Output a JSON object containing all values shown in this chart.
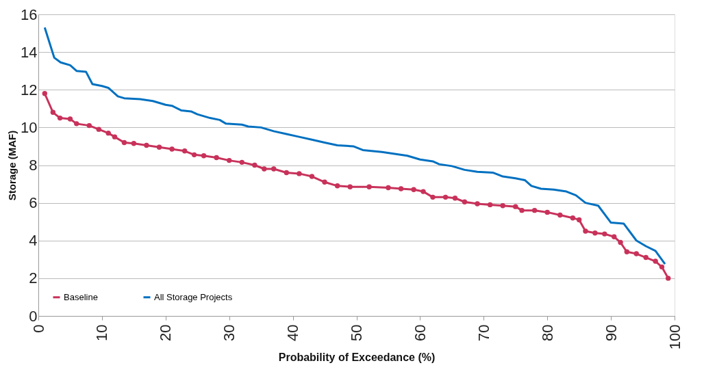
{
  "chart_data": {
    "type": "line",
    "xlabel": "Probability of Exceedance (%)",
    "ylabel": "Storage (MAF)",
    "xlim": [
      0,
      100
    ],
    "xticks": [
      0,
      10,
      20,
      30,
      40,
      50,
      60,
      70,
      80,
      90,
      100
    ],
    "ylim": [
      0,
      16
    ],
    "yticks": [
      0,
      2,
      4,
      6,
      8,
      10,
      12,
      14,
      16
    ],
    "grid": "y",
    "legend": "bottom left",
    "series": [
      {
        "name": "Baseline",
        "color": "#c8325a",
        "marker": "circle",
        "x": [
          1,
          2.3,
          3.4,
          5,
          6,
          8,
          9.5,
          11,
          12,
          13.5,
          15,
          17,
          19,
          21,
          23,
          24.5,
          26,
          28,
          30,
          32,
          34,
          35.5,
          37,
          39,
          41,
          43,
          45,
          47,
          49,
          52,
          55,
          57,
          59,
          60.5,
          62,
          64,
          65.5,
          67,
          69,
          71,
          73,
          75,
          76,
          78,
          80,
          82,
          84,
          85,
          86,
          87.5,
          89,
          90.5,
          91.5,
          92.5,
          94,
          95.5,
          97,
          98,
          99
        ],
        "values": [
          11.8,
          10.8,
          10.5,
          10.45,
          10.2,
          10.1,
          9.9,
          9.7,
          9.5,
          9.2,
          9.15,
          9.05,
          8.95,
          8.85,
          8.75,
          8.55,
          8.5,
          8.4,
          8.25,
          8.15,
          8.0,
          7.8,
          7.8,
          7.6,
          7.55,
          7.4,
          7.1,
          6.9,
          6.85,
          6.85,
          6.8,
          6.75,
          6.7,
          6.6,
          6.3,
          6.3,
          6.25,
          6.05,
          5.95,
          5.9,
          5.85,
          5.8,
          5.6,
          5.6,
          5.5,
          5.35,
          5.2,
          5.1,
          4.5,
          4.4,
          4.35,
          4.2,
          3.9,
          3.4,
          3.3,
          3.1,
          2.9,
          2.6,
          2.0
        ]
      },
      {
        "name": "All Storage Projects",
        "color": "#0070c0",
        "marker": "none",
        "x": [
          1,
          2.5,
          3.5,
          5,
          6,
          7.5,
          8.5,
          10,
          11,
          12.5,
          13.5,
          16,
          18,
          20,
          21,
          22.5,
          24,
          25,
          27,
          28.5,
          29.5,
          32,
          33,
          35,
          37,
          39,
          41,
          43,
          45,
          47,
          49.5,
          51,
          54,
          56,
          58,
          60,
          62,
          63,
          65,
          67,
          69,
          71.5,
          73,
          75,
          76.5,
          77.5,
          79,
          81,
          83,
          84.5,
          86,
          88,
          90,
          92,
          94,
          95.5,
          97,
          98.5
        ],
        "values": [
          15.3,
          13.7,
          13.45,
          13.3,
          13.0,
          12.95,
          12.3,
          12.2,
          12.1,
          11.65,
          11.55,
          11.5,
          11.4,
          11.2,
          11.15,
          10.9,
          10.85,
          10.7,
          10.5,
          10.4,
          10.2,
          10.15,
          10.05,
          10.0,
          9.8,
          9.65,
          9.5,
          9.35,
          9.2,
          9.05,
          9.0,
          8.8,
          8.7,
          8.6,
          8.5,
          8.3,
          8.2,
          8.05,
          7.95,
          7.75,
          7.65,
          7.6,
          7.4,
          7.3,
          7.2,
          6.9,
          6.75,
          6.7,
          6.6,
          6.4,
          6.0,
          5.85,
          4.95,
          4.9,
          4.0,
          3.7,
          3.45,
          2.75
        ]
      }
    ]
  }
}
